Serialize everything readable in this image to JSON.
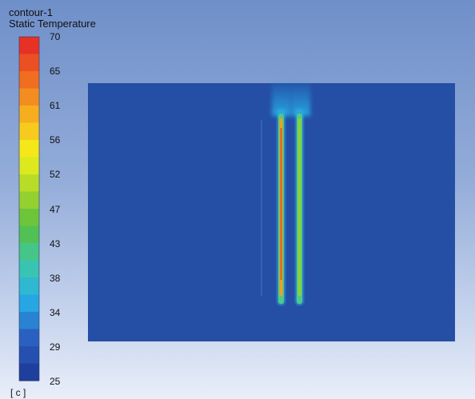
{
  "legend": {
    "title": "contour-1",
    "subtitle": "Static Temperature",
    "unit": "[ c ]",
    "ticks": [
      "70",
      "65",
      "61",
      "56",
      "52",
      "47",
      "43",
      "38",
      "34",
      "29",
      "25"
    ],
    "min": 25,
    "max": 70
  },
  "colors": {
    "background_top": "#6f8fc9",
    "background_bottom": "#e9eef9",
    "domain_fill": "#254ea5",
    "colormap": [
      "#1f3f9d",
      "#2b63c2",
      "#27aee8",
      "#3cc8a8",
      "#58bf3e",
      "#a9d72b",
      "#f3f21a",
      "#f7b51e",
      "#f2701f",
      "#e73124"
    ]
  },
  "plot": {
    "name": "contour-plot"
  }
}
